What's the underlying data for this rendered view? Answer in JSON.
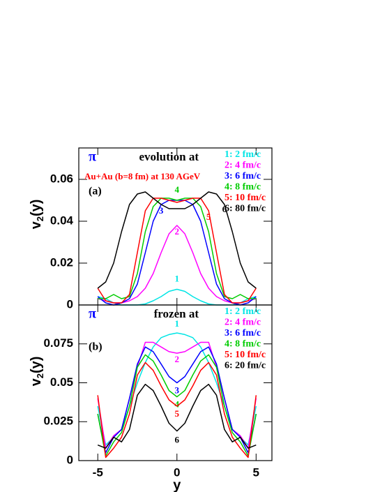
{
  "chart_data": [
    {
      "type": "line",
      "particle": "π",
      "title": "evolution at",
      "subtitle": "Au+Au (b=8 fm) at 130 AGeV",
      "panel_label": "(a)",
      "ylabel_parts": [
        "v",
        "2",
        "(y)"
      ],
      "x": [
        -5,
        -4.5,
        -4,
        -3.5,
        -3,
        -2.5,
        -2,
        -1.5,
        -1,
        -0.5,
        0,
        0.5,
        1,
        1.5,
        2,
        2.5,
        3,
        3.5,
        4,
        4.5,
        5
      ],
      "xlim": [
        -6.2,
        6
      ],
      "xticks": [
        -5,
        0,
        5
      ],
      "ylim": [
        0,
        0.075
      ],
      "yticks": [
        0,
        0.02,
        0.04,
        0.06
      ],
      "series": [
        {
          "name": "1:  2 fm/c",
          "curve_label": "1",
          "color": "#00e5e5",
          "values": [
            0.004,
            0.003,
            0.001,
            0,
            0,
            0,
            0.0005,
            0.002,
            0.004,
            0.0065,
            0.0075,
            0.0065,
            0.004,
            0.002,
            0.0005,
            0,
            0,
            0,
            0.001,
            0.003,
            0.004
          ]
        },
        {
          "name": "2:  4 fm/c",
          "curve_label": "2",
          "color": "#ff00ff",
          "values": [
            0.003,
            0.002,
            0.001,
            0.001,
            0.002,
            0.004,
            0.008,
            0.015,
            0.025,
            0.034,
            0.038,
            0.034,
            0.025,
            0.015,
            0.008,
            0.004,
            0.002,
            0.001,
            0.001,
            0.002,
            0.003
          ]
        },
        {
          "name": "3:  6 fm/c",
          "curve_label": "3",
          "color": "#0000ff",
          "values": [
            0.004,
            0.001,
            0,
            0.001,
            0.003,
            0.01,
            0.025,
            0.04,
            0.048,
            0.05,
            0.05,
            0.05,
            0.048,
            0.04,
            0.025,
            0.01,
            0.003,
            0.001,
            0,
            0.001,
            0.004
          ]
        },
        {
          "name": "4:  8 fm/c",
          "curve_label": "4",
          "color": "#00cc00",
          "values": [
            0.003,
            0.003,
            0.005,
            0.003,
            0.004,
            0.015,
            0.035,
            0.047,
            0.051,
            0.051,
            0.05,
            0.051,
            0.051,
            0.047,
            0.035,
            0.015,
            0.004,
            0.003,
            0.005,
            0.003,
            0.003
          ]
        },
        {
          "name": "5: 10 fm/c",
          "curve_label": "5",
          "color": "#ff0000",
          "values": [
            0.008,
            0.002,
            0.001,
            0.001,
            0.005,
            0.025,
            0.045,
            0.051,
            0.051,
            0.05,
            0.049,
            0.05,
            0.051,
            0.051,
            0.045,
            0.025,
            0.005,
            0.001,
            0.001,
            0.002,
            0.008
          ]
        },
        {
          "name": "6: 80 fm/c",
          "curve_label": "6",
          "color": "#000000",
          "values": [
            0.008,
            0.011,
            0.02,
            0.035,
            0.048,
            0.053,
            0.054,
            0.051,
            0.048,
            0.046,
            0.046,
            0.046,
            0.048,
            0.051,
            0.054,
            0.053,
            0.048,
            0.035,
            0.02,
            0.011,
            0.008
          ]
        }
      ]
    },
    {
      "type": "line",
      "particle": "π",
      "title": "frozen at",
      "panel_label": "(b)",
      "ylabel_parts": [
        "v",
        "2",
        "(y)"
      ],
      "xlabel": "y",
      "x": [
        -5,
        -4.5,
        -4,
        -3.5,
        -3,
        -2.5,
        -2,
        -1.5,
        -1,
        -0.5,
        0,
        0.5,
        1,
        1.5,
        2,
        2.5,
        3,
        3.5,
        4,
        4.5,
        5
      ],
      "xlim": [
        -6.2,
        6
      ],
      "xticks": [
        -5,
        0,
        5
      ],
      "ylim": [
        0,
        0.1
      ],
      "yticks": [
        0,
        0.025,
        0.05,
        0.075
      ],
      "series": [
        {
          "name": "1:  2 fm/c",
          "curve_label": "1",
          "color": "#00e5e5",
          "values": [
            0.035,
            0.01,
            0.015,
            0.02,
            0.035,
            0.05,
            0.063,
            0.073,
            0.079,
            0.081,
            0.082,
            0.081,
            0.079,
            0.073,
            0.063,
            0.05,
            0.035,
            0.02,
            0.015,
            0.01,
            0.035
          ]
        },
        {
          "name": "2:  4 fm/c",
          "curve_label": "2",
          "color": "#ff00ff",
          "values": [
            0.04,
            0.008,
            0.016,
            0.02,
            0.04,
            0.06,
            0.076,
            0.076,
            0.073,
            0.07,
            0.069,
            0.07,
            0.073,
            0.076,
            0.076,
            0.06,
            0.04,
            0.02,
            0.016,
            0.008,
            0.04
          ]
        },
        {
          "name": "3:  6 fm/c",
          "curve_label": "3",
          "color": "#0000ff",
          "values": [
            0.03,
            0.005,
            0.015,
            0.02,
            0.04,
            0.062,
            0.073,
            0.07,
            0.062,
            0.054,
            0.05,
            0.054,
            0.062,
            0.07,
            0.073,
            0.062,
            0.04,
            0.02,
            0.015,
            0.005,
            0.03
          ]
        },
        {
          "name": "4:  8 fm/c",
          "curve_label": "4",
          "color": "#00cc00",
          "values": [
            0.03,
            0.003,
            0.012,
            0.018,
            0.035,
            0.06,
            0.068,
            0.064,
            0.055,
            0.045,
            0.041,
            0.045,
            0.055,
            0.064,
            0.068,
            0.06,
            0.035,
            0.018,
            0.012,
            0.003,
            0.03
          ]
        },
        {
          "name": "5: 10 fm/c",
          "curve_label": "5",
          "color": "#ff0000",
          "values": [
            0.042,
            0.002,
            0.008,
            0.015,
            0.03,
            0.055,
            0.063,
            0.058,
            0.048,
            0.039,
            0.035,
            0.039,
            0.048,
            0.058,
            0.063,
            0.055,
            0.03,
            0.015,
            0.008,
            0.002,
            0.042
          ]
        },
        {
          "name": "6: 20 fm/c",
          "curve_label": "6",
          "color": "#000000",
          "values": [
            0.01,
            0.008,
            0.015,
            0.012,
            0.02,
            0.042,
            0.049,
            0.045,
            0.035,
            0.024,
            0.019,
            0.024,
            0.035,
            0.045,
            0.049,
            0.042,
            0.02,
            0.012,
            0.015,
            0.008,
            0.01
          ]
        }
      ]
    }
  ]
}
